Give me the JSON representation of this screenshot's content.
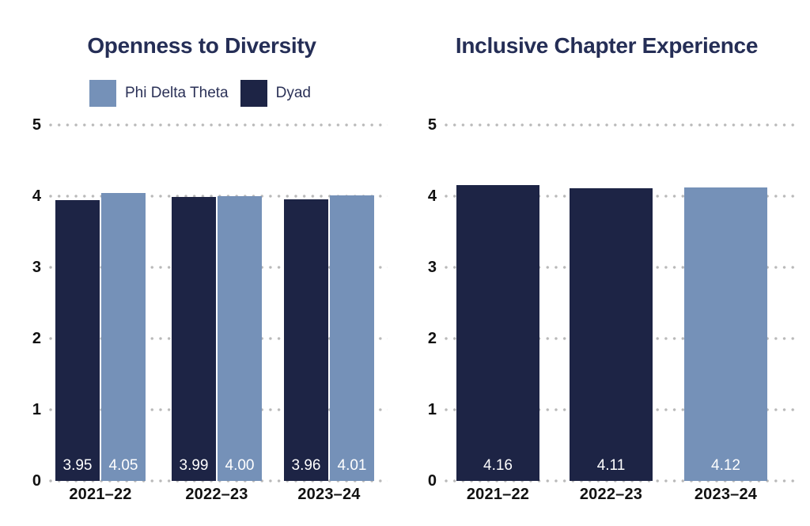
{
  "colors": {
    "dyad": "#1d2445",
    "phi_delta_theta": "#7591b8",
    "title": "#252e56",
    "axis_label": "#111111",
    "grid_dot": "#b9b9b9",
    "value_label": "#ffffff",
    "background": "#ffffff"
  },
  "chart_data": [
    {
      "type": "bar",
      "title": "Openness to Diversity",
      "categories": [
        "2021–22",
        "2022–23",
        "2023–24"
      ],
      "series": [
        {
          "name": "Dyad",
          "color_key": "dyad",
          "values": [
            3.95,
            3.99,
            3.96
          ],
          "labels": [
            "3.95",
            "3.99",
            "3.96"
          ]
        },
        {
          "name": "Phi Delta Theta",
          "color_key": "phi_delta_theta",
          "values": [
            4.05,
            4.0,
            4.01
          ],
          "labels": [
            "4.05",
            "4.00",
            "4.01"
          ]
        }
      ],
      "legend": {
        "position": "top-left",
        "entries": [
          {
            "label": "Phi Delta Theta",
            "color_key": "phi_delta_theta"
          },
          {
            "label": "Dyad",
            "color_key": "dyad"
          }
        ]
      },
      "ylim": [
        0,
        5
      ],
      "yticks": [
        0,
        1,
        2,
        3,
        4,
        5
      ],
      "grid": "dotted-horizontal",
      "value_labels_position": "inside-bottom"
    },
    {
      "type": "bar",
      "title": "Inclusive Chapter Experience",
      "categories": [
        "2021–22",
        "2022–23",
        "2023–24"
      ],
      "bars": [
        {
          "category": "2021–22",
          "value": 4.16,
          "label": "4.16",
          "series": "Dyad",
          "color_key": "dyad"
        },
        {
          "category": "2022–23",
          "value": 4.11,
          "label": "4.11",
          "series": "Dyad",
          "color_key": "dyad"
        },
        {
          "category": "2023–24",
          "value": 4.12,
          "label": "4.12",
          "series": "Phi Delta Theta",
          "color_key": "phi_delta_theta"
        }
      ],
      "ylim": [
        0,
        5
      ],
      "yticks": [
        0,
        1,
        2,
        3,
        4,
        5
      ],
      "grid": "dotted-horizontal",
      "value_labels_position": "inside-bottom"
    }
  ]
}
